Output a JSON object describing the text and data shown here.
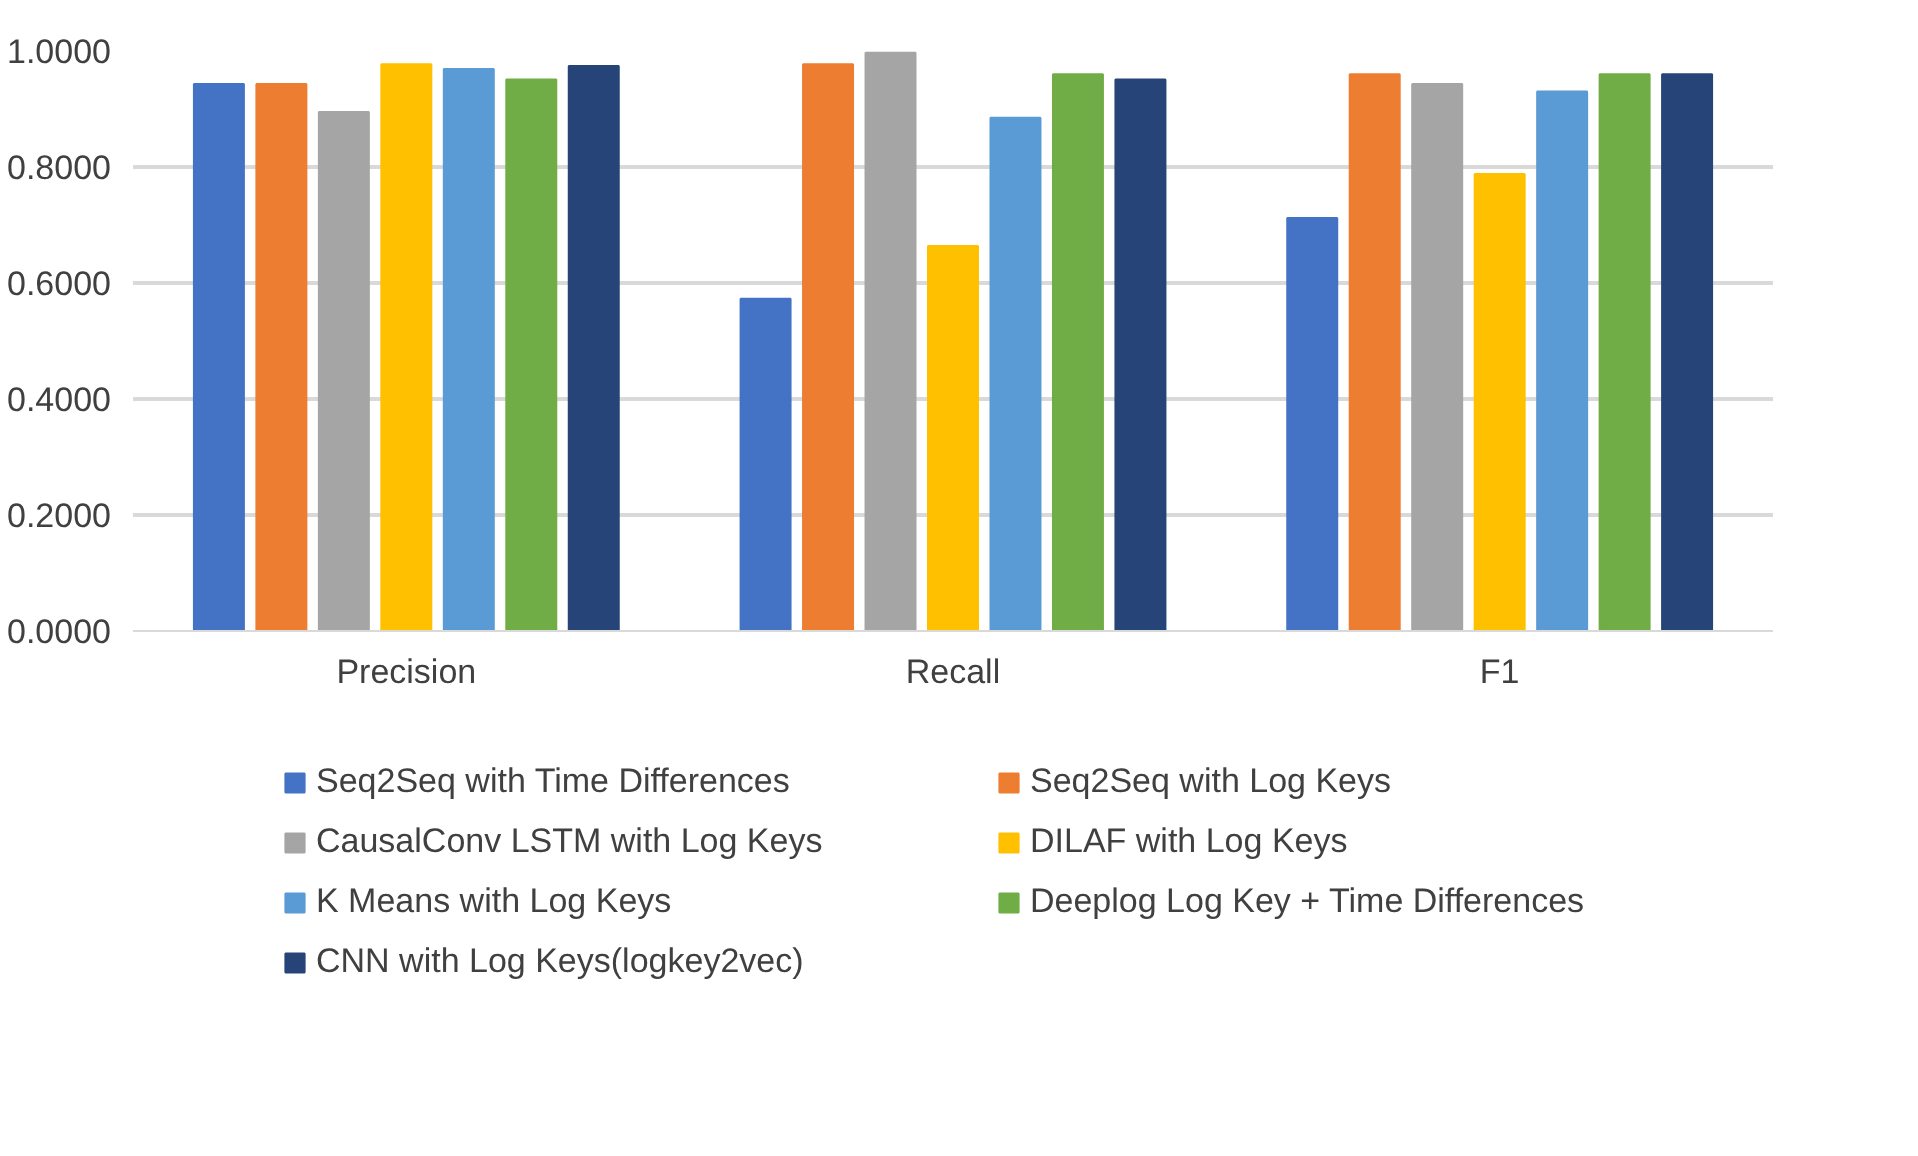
{
  "chart_data": {
    "type": "bar",
    "categories": [
      "Precision",
      "Recall",
      "F1"
    ],
    "series": [
      {
        "name": "Seq2Seq with Time Differences",
        "color": "#4472c4",
        "values": [
          0.943,
          0.573,
          0.712
        ]
      },
      {
        "name": "Seq2Seq with Log Keys",
        "color": "#ed7d31",
        "values": [
          0.943,
          0.977,
          0.96
        ]
      },
      {
        "name": "CausalConv LSTM with Log Keys",
        "color": "#a5a5a5",
        "values": [
          0.895,
          0.997,
          0.943
        ]
      },
      {
        "name": "DILAF with Log Keys",
        "color": "#ffc000",
        "values": [
          0.977,
          0.664,
          0.788
        ]
      },
      {
        "name": "K Means with Log Keys",
        "color": "#5b9bd5",
        "values": [
          0.969,
          0.885,
          0.93
        ]
      },
      {
        "name": "Deeplog Log Key + Time Differences",
        "color": "#70ad47",
        "values": [
          0.951,
          0.96,
          0.96
        ]
      },
      {
        "name": "CNN with Log Keys(logkey2vec)",
        "color": "#264478",
        "values": [
          0.974,
          0.951,
          0.96
        ]
      }
    ],
    "ylim": [
      0,
      1
    ],
    "yticks": [
      {
        "value": 0,
        "label": "0.0000"
      },
      {
        "value": 0.2,
        "label": "0.2000"
      },
      {
        "value": 0.4,
        "label": "0.4000"
      },
      {
        "value": 0.6,
        "label": "0.6000"
      },
      {
        "value": 0.8,
        "label": "0.8000"
      },
      {
        "value": 1,
        "label": "1.0000"
      }
    ],
    "grid": "y",
    "legend": "bottom"
  }
}
